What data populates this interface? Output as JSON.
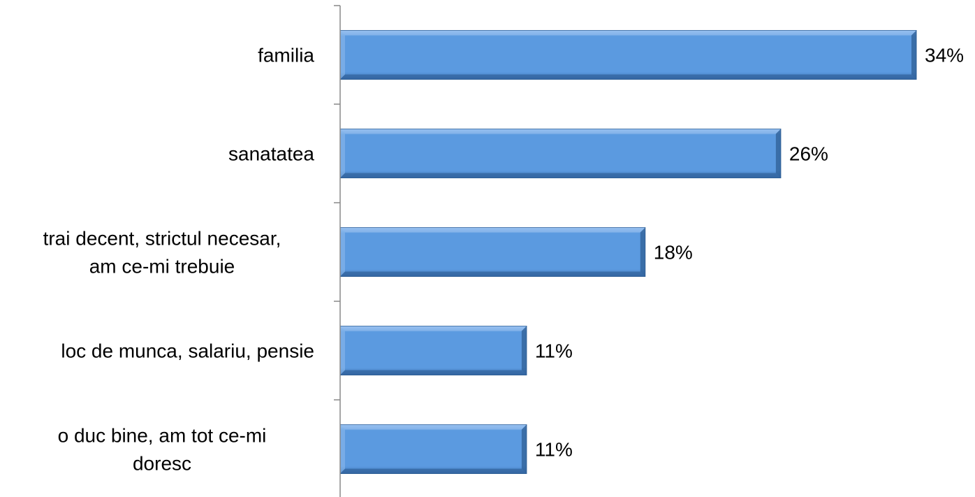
{
  "chart_data": {
    "type": "bar",
    "orientation": "horizontal",
    "categories": [
      "familia",
      "sanatatea",
      "trai decent, strictul necesar, am ce-mi trebuie",
      "loc de munca, salariu, pensie",
      "o duc bine, am tot ce-mi doresc"
    ],
    "category_lines": [
      [
        "familia"
      ],
      [
        "sanatatea"
      ],
      [
        "trai decent, strictul necesar,",
        "am ce-mi trebuie"
      ],
      [
        "loc de munca, salariu, pensie"
      ],
      [
        "o duc bine, am tot ce-mi",
        "doresc"
      ]
    ],
    "values": [
      34,
      26,
      18,
      11,
      11
    ],
    "value_labels": [
      "34%",
      "26%",
      "18%",
      "11%",
      "11%"
    ],
    "title": "",
    "xlabel": "",
    "ylabel": "",
    "xlim": [
      0,
      34
    ],
    "grid": false,
    "legend": "none",
    "colors": {
      "bar_fill": "#5b9ae0",
      "bar_edge_dark": "#2f5f96",
      "bar_edge_light": "#9cc3f0",
      "axis": "#888888",
      "text": "#000000"
    }
  }
}
